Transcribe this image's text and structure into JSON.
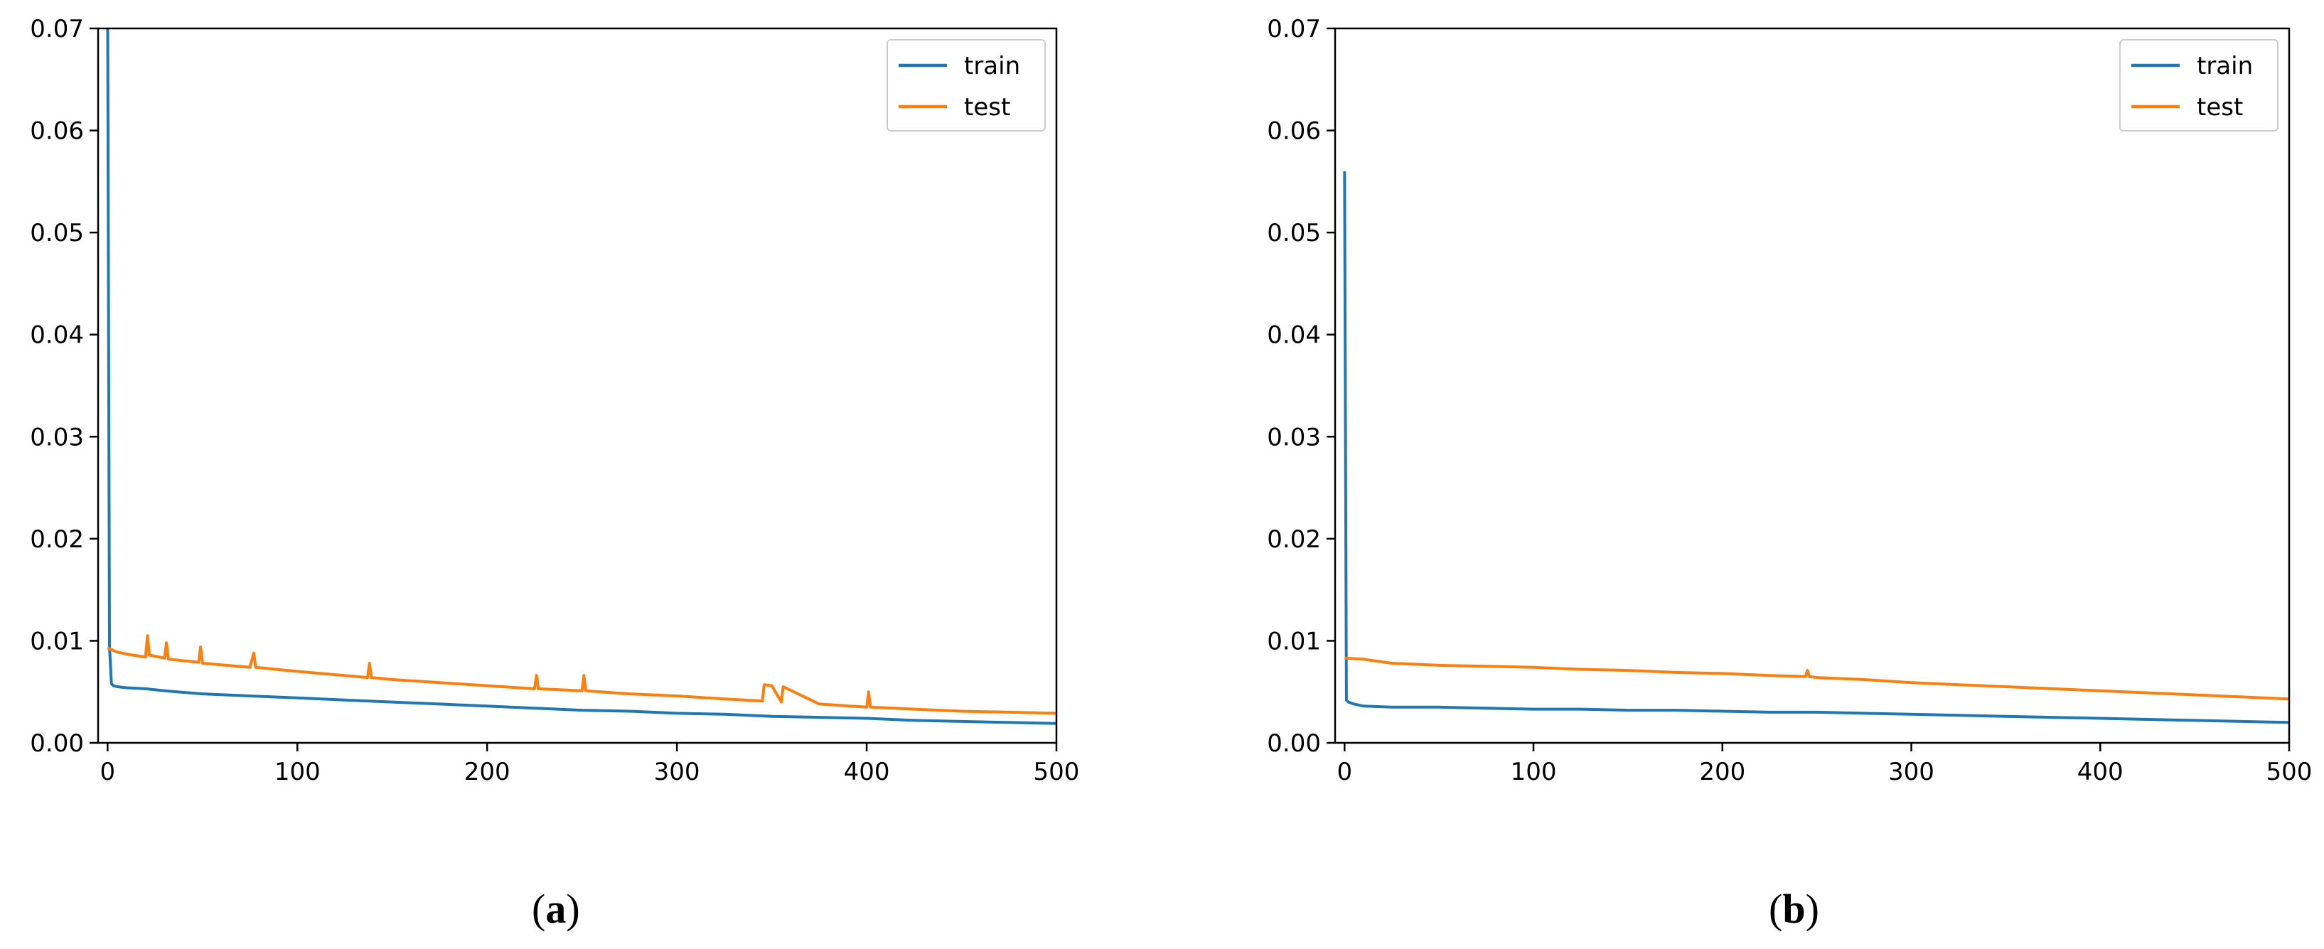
{
  "chart_data": [
    {
      "type": "line",
      "caption_letter": "a",
      "xlim": [
        -5,
        500
      ],
      "ylim": [
        0.0,
        0.07
      ],
      "xticks": [
        "0",
        "100",
        "200",
        "300",
        "400",
        "500"
      ],
      "yticks": [
        "0.00",
        "0.01",
        "0.02",
        "0.03",
        "0.04",
        "0.05",
        "0.06",
        "0.07"
      ],
      "legend_position": "upper right",
      "grid": false,
      "series": [
        {
          "name": "train",
          "color": "#1f77b4",
          "x": [
            0,
            1,
            2,
            3,
            5,
            10,
            20,
            30,
            50,
            75,
            100,
            125,
            150,
            175,
            200,
            225,
            250,
            275,
            300,
            325,
            350,
            375,
            400,
            425,
            450,
            475,
            500
          ],
          "y": [
            0.075,
            0.0095,
            0.0058,
            0.0056,
            0.0055,
            0.0054,
            0.0053,
            0.0051,
            0.0048,
            0.0046,
            0.0044,
            0.0042,
            0.004,
            0.0038,
            0.0036,
            0.0034,
            0.0032,
            0.0031,
            0.0029,
            0.0028,
            0.0026,
            0.0025,
            0.0024,
            0.0022,
            0.0021,
            0.002,
            0.0019
          ]
        },
        {
          "name": "test",
          "color": "#ff7f0e",
          "x": [
            0,
            5,
            10,
            20,
            21,
            22,
            30,
            31,
            32,
            48,
            49,
            50,
            75,
            77,
            78,
            100,
            137,
            138,
            139,
            150,
            175,
            200,
            225,
            226,
            227,
            250,
            251,
            252,
            275,
            300,
            325,
            345,
            346,
            350,
            355,
            356,
            375,
            400,
            401,
            402,
            425,
            450,
            475,
            500
          ],
          "y": [
            0.0093,
            0.0089,
            0.0087,
            0.0084,
            0.0105,
            0.0086,
            0.0083,
            0.0098,
            0.0082,
            0.0079,
            0.0094,
            0.0078,
            0.0074,
            0.0088,
            0.0074,
            0.007,
            0.0064,
            0.0078,
            0.0064,
            0.0062,
            0.0059,
            0.0056,
            0.0053,
            0.0066,
            0.0053,
            0.0051,
            0.0066,
            0.0051,
            0.0048,
            0.0046,
            0.0043,
            0.0041,
            0.0057,
            0.0056,
            0.004,
            0.0055,
            0.0038,
            0.0035,
            0.005,
            0.0035,
            0.0033,
            0.0031,
            0.003,
            0.0029
          ]
        }
      ]
    },
    {
      "type": "line",
      "caption_letter": "b",
      "xlim": [
        -5,
        500
      ],
      "ylim": [
        0.0,
        0.07
      ],
      "xticks": [
        "0",
        "100",
        "200",
        "300",
        "400",
        "500"
      ],
      "yticks": [
        "0.00",
        "0.01",
        "0.02",
        "0.03",
        "0.04",
        "0.05",
        "0.06",
        "0.07"
      ],
      "legend_position": "upper right",
      "grid": false,
      "series": [
        {
          "name": "train",
          "color": "#1f77b4",
          "x": [
            0,
            1,
            2,
            5,
            10,
            25,
            50,
            75,
            100,
            125,
            150,
            175,
            200,
            225,
            250,
            275,
            300,
            325,
            350,
            375,
            400,
            425,
            450,
            475,
            500
          ],
          "y": [
            0.056,
            0.0042,
            0.004,
            0.0038,
            0.0036,
            0.0035,
            0.0035,
            0.0034,
            0.0033,
            0.0033,
            0.0032,
            0.0032,
            0.0031,
            0.003,
            0.003,
            0.0029,
            0.0028,
            0.0027,
            0.0026,
            0.0025,
            0.0024,
            0.0023,
            0.0022,
            0.0021,
            0.002
          ]
        },
        {
          "name": "test",
          "color": "#ff7f0e",
          "x": [
            0,
            10,
            25,
            50,
            75,
            100,
            125,
            150,
            175,
            200,
            225,
            244,
            245,
            246,
            250,
            275,
            300,
            325,
            350,
            375,
            400,
            425,
            450,
            475,
            500
          ],
          "y": [
            0.0083,
            0.0082,
            0.0078,
            0.0076,
            0.0075,
            0.0074,
            0.0072,
            0.0071,
            0.0069,
            0.0068,
            0.0066,
            0.0065,
            0.0071,
            0.0065,
            0.0064,
            0.0062,
            0.0059,
            0.0057,
            0.0055,
            0.0053,
            0.0051,
            0.0049,
            0.0047,
            0.0045,
            0.0043
          ]
        }
      ]
    }
  ]
}
